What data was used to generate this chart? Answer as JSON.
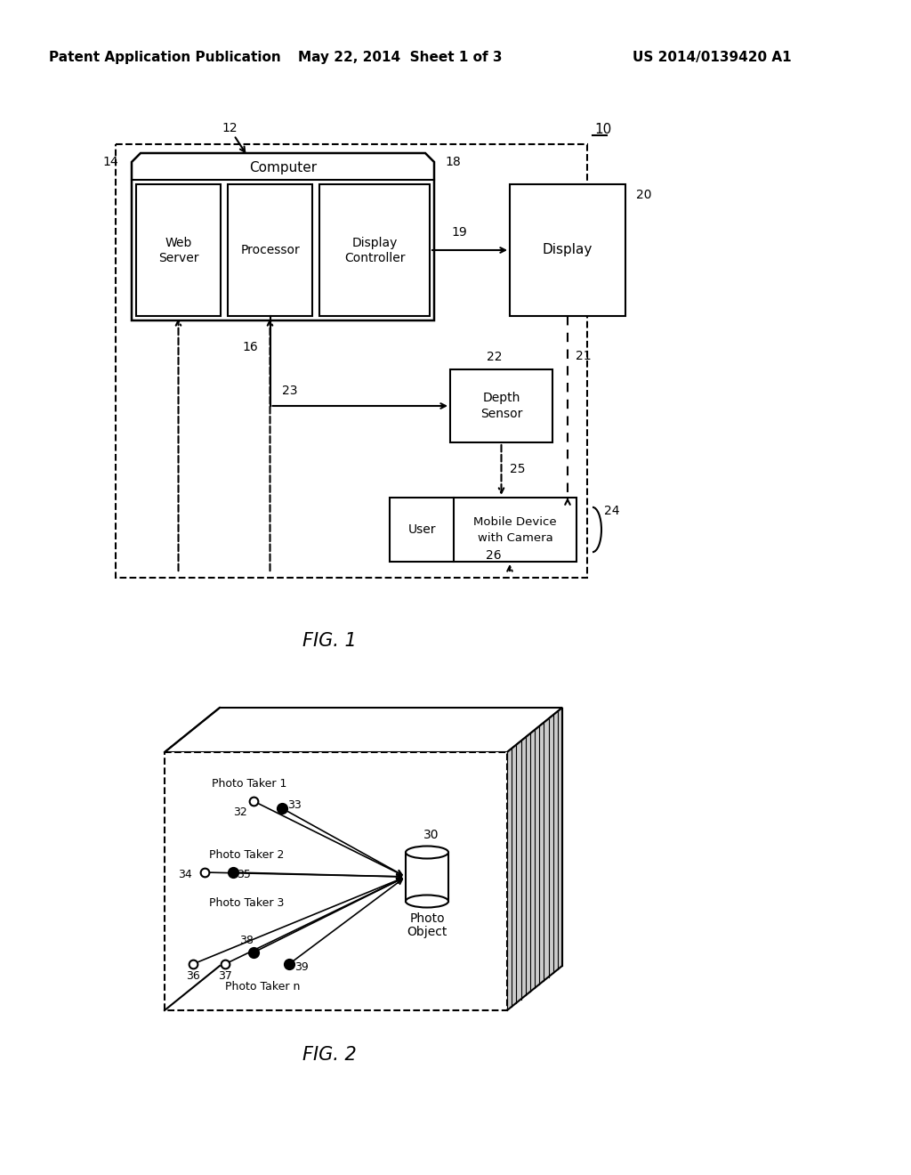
{
  "bg_color": "#ffffff",
  "header_left": "Patent Application Publication",
  "header_mid": "May 22, 2014  Sheet 1 of 3",
  "header_right": "US 2014/0139420 A1"
}
